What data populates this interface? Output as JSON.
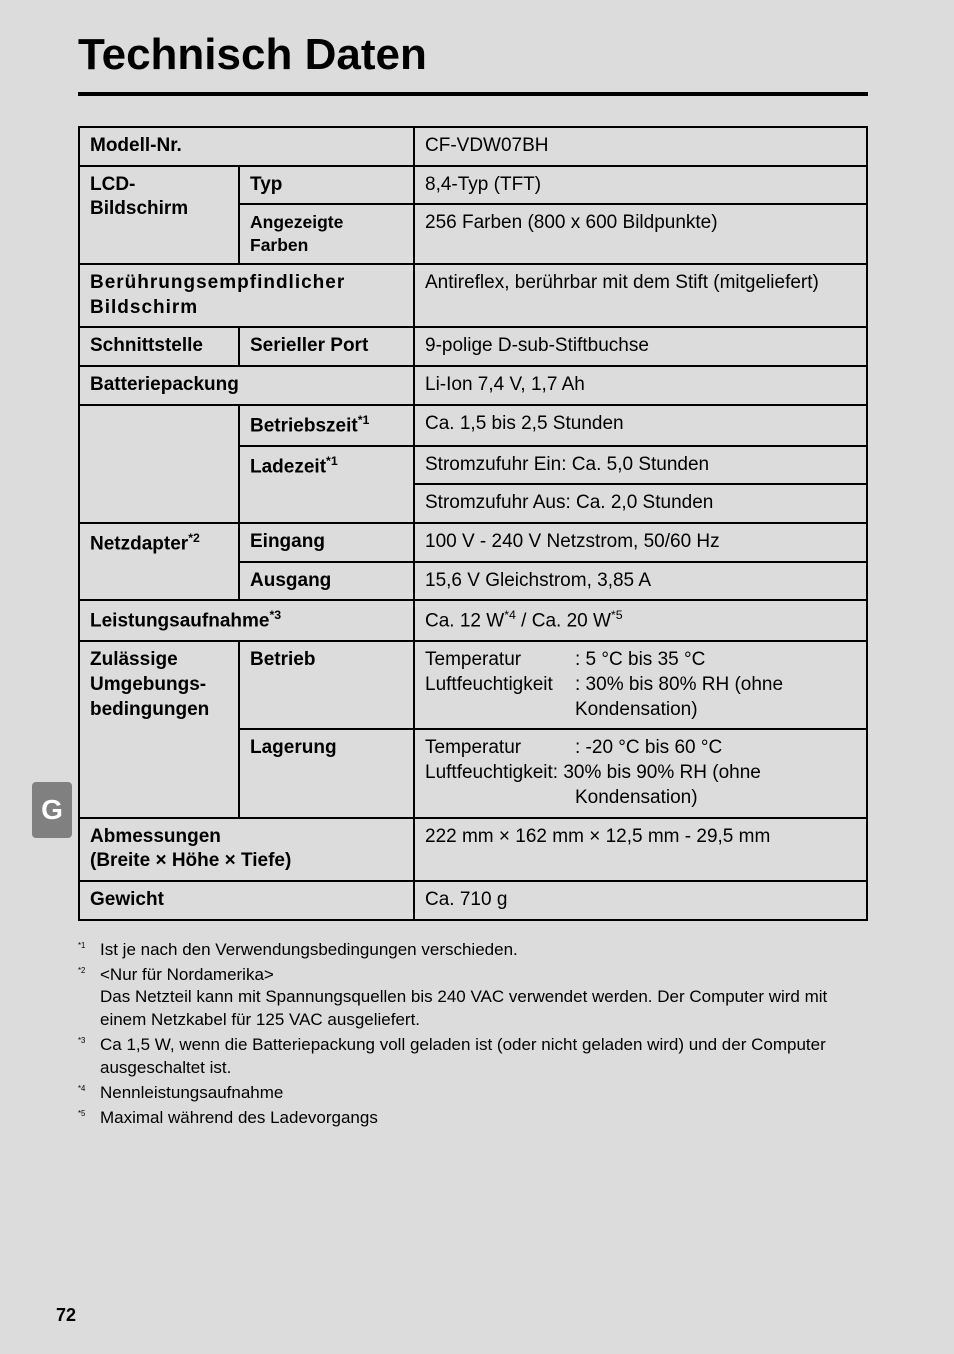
{
  "title": "Technisch Daten",
  "lang_tab": "G",
  "page_number": "72",
  "rows": {
    "model_no_label": "Modell-Nr.",
    "model_no_value": "CF-VDW07BH",
    "lcd_label": "LCD-Bildschirm",
    "lcd_label_line1": "LCD-",
    "lcd_label_line2": "Bildschirm",
    "type_label": "Typ",
    "type_value": "8,4-Typ (TFT)",
    "colors_label": "Angezeigte Farben",
    "colors_value": "256 Farben (800 x 600 Bildpunkte)",
    "touch_label": "Berührungsempfindlicher Bildschirm",
    "touch_value": "Antireflex, berührbar mit dem Stift (mitgeliefert)",
    "iface_label": "Schnittstelle",
    "serial_label": "Serieller Port",
    "serial_value": "9-polige D-sub-Stiftbuchse",
    "battery_label": "Batteriepackung",
    "battery_value": "Li-Ion 7,4 V, 1,7 Ah",
    "runtime_label_pre": "Betriebszeit",
    "runtime_value": "Ca. 1,5 bis 2,5 Stunden",
    "charge_label_pre": "Ladezeit",
    "charge_on": "Stromzufuhr Ein: Ca. 5,0 Stunden",
    "charge_off": "Stromzufuhr Aus: Ca. 2,0 Stunden",
    "adapter_label_pre": "Netzdapter",
    "input_label": "Eingang",
    "input_value": "100 V - 240 V Netzstrom, 50/60 Hz",
    "output_label": "Ausgang",
    "output_value": "15,6 V Gleichstrom, 3,85 A",
    "power_label_pre": "Leistungsaufnahme",
    "power_value_a": "Ca. 12 W",
    "power_value_sep": " / ",
    "power_value_b": "Ca. 20 W",
    "env_label": "Zulässige Umgebungs- bedingungen",
    "env_label_l1": "Zulässige",
    "env_label_l2": "Umgebungs-",
    "env_label_l3": "bedingungen",
    "op_label": "Betrieb",
    "op_temp_l": "Temperatur",
    "op_temp_r": ": 5 °C bis 35 °C",
    "op_hum_l": "Luftfeuchtigkeit",
    "op_hum_r1": ": 30% bis 80% RH (ohne",
    "op_hum_r2": "Kondensation)",
    "st_label": "Lagerung",
    "st_temp_l": "Temperatur",
    "st_temp_r": ": -20 °C bis 60 °C",
    "st_hum_full1": "Luftfeuchtigkeit: 30% bis 90% RH (ohne",
    "st_hum_r2": "Kondensation)",
    "dim_label": "Abmessungen",
    "dim_sub": "(Breite × Höhe × Tiefe)",
    "dim_value": "222 mm × 162 mm × 12,5 mm - 29,5 mm",
    "weight_label": "Gewicht",
    "weight_value": "Ca. 710 g"
  },
  "footnotes": {
    "f1": "Ist je nach den Verwendungsbedingungen verschieden.",
    "f2a": "<Nur für Nordamerika>",
    "f2b": "Das Netzteil kann mit Spannungsquellen bis 240 VAC verwendet werden. Der Computer wird mit einem Netzkabel für 125 VAC ausgeliefert.",
    "f3": "Ca 1,5 W, wenn die Batteriepackung voll geladen ist (oder nicht geladen wird) und der Computer ausgeschaltet ist.",
    "f4": "Nennleistungsaufnahme",
    "f5": "Maximal während des Ladevorgangs"
  },
  "marks": {
    "m1": "*1",
    "m2": "*2",
    "m3": "*3",
    "m4": "*4",
    "m5": "*5"
  }
}
